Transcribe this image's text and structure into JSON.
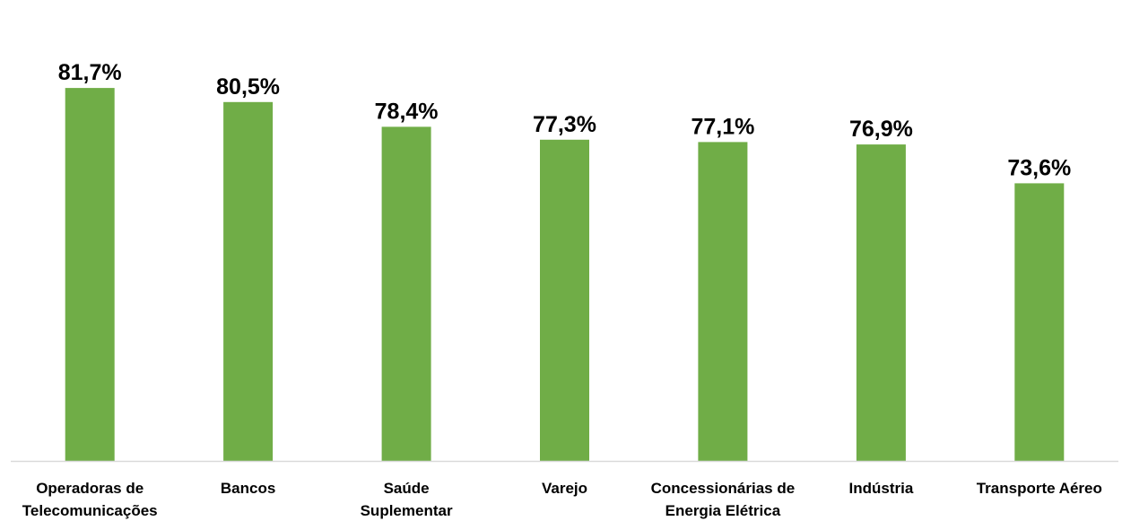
{
  "chart_data": {
    "type": "bar",
    "categories": [
      [
        "Operadoras de",
        "Telecomunicações"
      ],
      [
        "Bancos"
      ],
      [
        "Saúde",
        "Suplementar"
      ],
      [
        "Varejo"
      ],
      [
        "Concessionárias de",
        "Energia Elétrica"
      ],
      [
        "Indústria"
      ],
      [
        "Transporte Aéreo"
      ]
    ],
    "values": [
      81.7,
      80.5,
      78.4,
      77.3,
      77.1,
      76.9,
      73.6
    ],
    "value_labels": [
      "81,7%",
      "80,5%",
      "78,4%",
      "77,3%",
      "77,1%",
      "76,9%",
      "73,6%"
    ],
    "ylim": [
      50,
      85
    ],
    "bar_color": "#70AD47",
    "axis_color": "#D9D9D9",
    "grid": false,
    "legend": "none"
  }
}
